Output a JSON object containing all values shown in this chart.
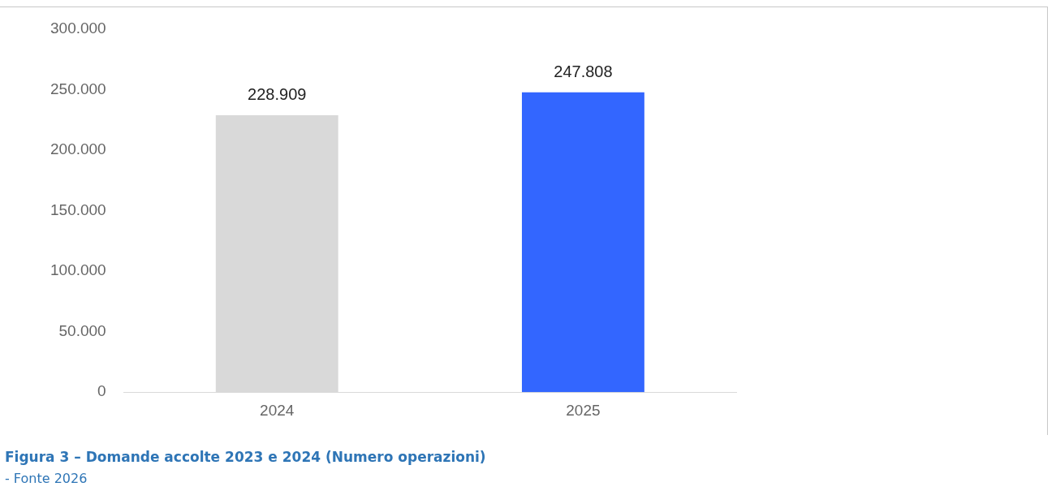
{
  "chart_data": {
    "type": "bar",
    "title": "Figura 3 – Domande accolte 2023 e 2024 (Numero operazioni)",
    "categories": [
      "2024",
      "2025"
    ],
    "values": [
      228909,
      247808
    ],
    "colors": [
      "#d9d9d9",
      "#3366ff"
    ],
    "value_labels": [
      "228.909",
      "247.808"
    ],
    "ylim": [
      0,
      300000
    ],
    "yticks": [
      0,
      {
        "value": 50000,
        "label": "50.000"
      },
      {
        "value": 100000,
        "label": "100.000"
      },
      {
        "value": 150000,
        "label": "150.000"
      },
      {
        "value": 200000,
        "label": "200.000"
      },
      {
        "value": 250000,
        "label": "250.000"
      },
      {
        "value": 300000,
        "label": "300.000"
      }
    ],
    "grid": false,
    "legend": false,
    "annotations": [
      "- Fonte 2026"
    ]
  }
}
